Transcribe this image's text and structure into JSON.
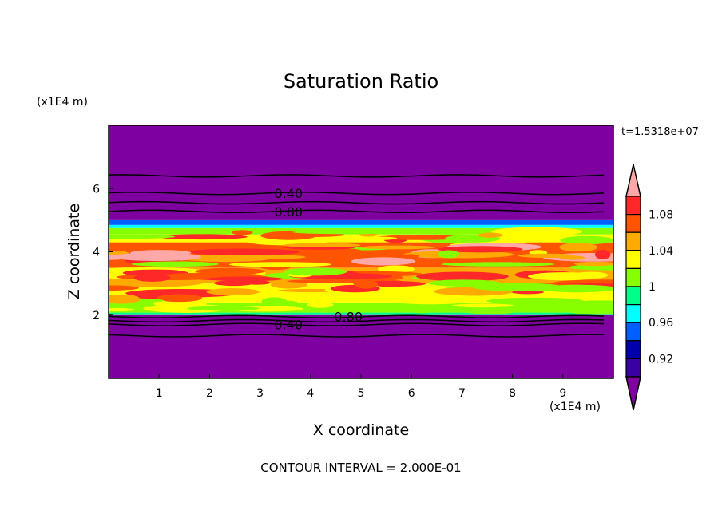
{
  "chart_data": {
    "type": "heatmap",
    "title": "Saturation Ratio",
    "xlabel": "X coordinate",
    "ylabel": "Z coordinate",
    "x_units": "(x1E4 m)",
    "y_units": "(x1E4 m)",
    "time_label": "t=1.5318e+07",
    "footer": "CONTOUR INTERVAL = 2.000E-01",
    "xlim": [
      0,
      10
    ],
    "ylim": [
      0,
      8
    ],
    "xticks": [
      "1",
      "2",
      "3",
      "4",
      "5",
      "6",
      "7",
      "8",
      "9"
    ],
    "yticks": [
      "2",
      "4",
      "6"
    ],
    "colorbar": {
      "levels": [
        0.9,
        0.92,
        0.94,
        0.96,
        0.98,
        1.0,
        1.02,
        1.04,
        1.06,
        1.08,
        1.1
      ],
      "tick_labels": [
        "1.08",
        "1.04",
        "1",
        "0.96",
        "0.92"
      ],
      "colors_top_to_bottom": [
        "#ffa8a8",
        "#ff2828",
        "#ff5500",
        "#ffaa00",
        "#ffff00",
        "#88ff00",
        "#00ff88",
        "#00ffff",
        "#0060ff",
        "#0000aa",
        "#3a00a0",
        "#7e00a0"
      ]
    },
    "bands": [
      {
        "z0": 0,
        "z1": 2.0,
        "color": "#7e00a0"
      },
      {
        "z0": 2.0,
        "z1": 2.08,
        "color": "#00ff88"
      },
      {
        "z0": 2.08,
        "z1": 2.4,
        "color": "#88ff00"
      },
      {
        "z0": 2.4,
        "z1": 3.0,
        "color": "#ffff00"
      },
      {
        "z0": 3.0,
        "z1": 3.5,
        "color": "#ffaa00"
      },
      {
        "z0": 3.5,
        "z1": 4.3,
        "color": "#ff5500"
      },
      {
        "z0": 4.3,
        "z1": 4.55,
        "color": "#ffff00"
      },
      {
        "z0": 4.55,
        "z1": 4.75,
        "color": "#88ff00"
      },
      {
        "z0": 4.75,
        "z1": 4.85,
        "color": "#00ffff"
      },
      {
        "z0": 4.85,
        "z1": 5.0,
        "color": "#0060ff"
      },
      {
        "z0": 5.0,
        "z1": 8,
        "color": "#7e00a0"
      }
    ],
    "contours": [
      {
        "z": 1.35,
        "label": ""
      },
      {
        "z": 1.7,
        "label": "0.40"
      },
      {
        "z": 1.82,
        "label": ""
      },
      {
        "z": 1.95,
        "label": "0.80"
      },
      {
        "z": 5.28,
        "label": "0.80"
      },
      {
        "z": 5.55,
        "label": ""
      },
      {
        "z": 5.85,
        "label": "0.40"
      },
      {
        "z": 6.4,
        "label": ""
      }
    ]
  }
}
